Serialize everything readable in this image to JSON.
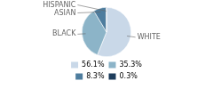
{
  "chart_data": {
    "type": "pie",
    "categories": [
      "WHITE",
      "BLACK",
      "ASIAN",
      "HISPANIC"
    ],
    "values": [
      56.1,
      35.3,
      8.3,
      0.3
    ],
    "value_labels": [
      "56.1%",
      "35.3%",
      "8.3%",
      "0.3%"
    ],
    "colors": [
      "#c9d8e8",
      "#8cb4c8",
      "#4e7d9e",
      "#1e3d5c"
    ],
    "legend": "bottom"
  }
}
